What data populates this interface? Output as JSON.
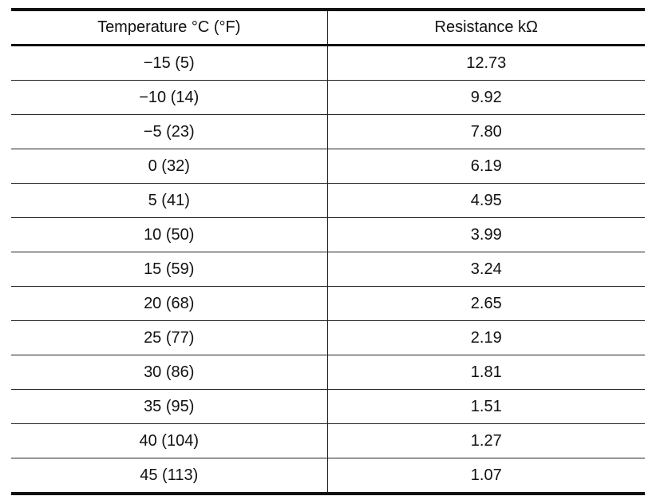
{
  "table": {
    "headers": [
      "Temperature °C (°F)",
      "Resistance kΩ"
    ],
    "rows": [
      [
        "−15 (5)",
        "12.73"
      ],
      [
        "−10 (14)",
        "9.92"
      ],
      [
        "−5 (23)",
        "7.80"
      ],
      [
        "0 (32)",
        "6.19"
      ],
      [
        "5 (41)",
        "4.95"
      ],
      [
        "10 (50)",
        "3.99"
      ],
      [
        "15 (59)",
        "3.24"
      ],
      [
        "20 (68)",
        "2.65"
      ],
      [
        "25 (77)",
        "2.19"
      ],
      [
        "30 (86)",
        "1.81"
      ],
      [
        "35 (95)",
        "1.51"
      ],
      [
        "40 (104)",
        "1.27"
      ],
      [
        "45 (113)",
        "1.07"
      ]
    ]
  }
}
